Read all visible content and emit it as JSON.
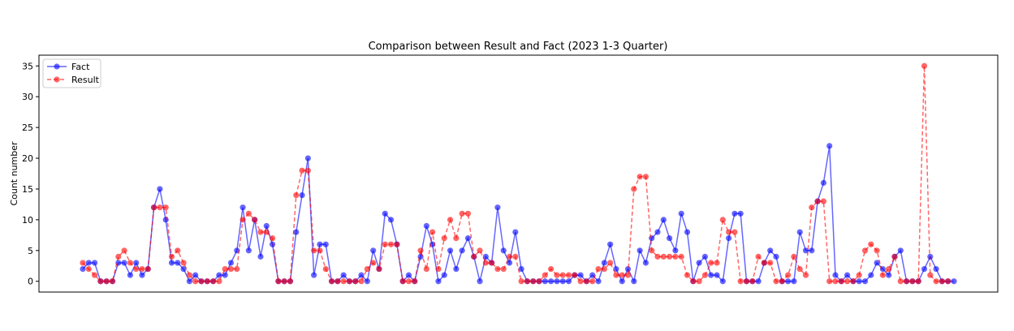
{
  "chart_data": {
    "type": "line",
    "title": "Comparison between Result and Fact (2023 1-3 Quarter)",
    "xlabel": "",
    "ylabel": "Count number",
    "ylim": [
      -1.75,
      36.75
    ],
    "yticks": [
      0,
      5,
      10,
      15,
      20,
      25,
      30,
      35
    ],
    "grid": false,
    "legend_position": "upper-left",
    "series": [
      {
        "name": "Fact",
        "color": "#0000ff",
        "linestyle": "solid",
        "marker": "circle",
        "values": [
          2,
          3,
          3,
          0,
          0,
          0,
          3,
          3,
          1,
          3,
          1,
          2,
          12,
          15,
          10,
          3,
          3,
          2,
          0,
          1,
          0,
          0,
          0,
          1,
          1,
          3,
          5,
          12,
          5,
          10,
          4,
          9,
          6,
          0,
          0,
          0,
          8,
          14,
          20,
          1,
          6,
          6,
          0,
          0,
          1,
          0,
          0,
          1,
          0,
          5,
          2,
          11,
          10,
          6,
          0,
          1,
          0,
          4,
          9,
          6,
          0,
          1,
          5,
          2,
          5,
          7,
          4,
          0,
          4,
          3,
          12,
          5,
          3,
          8,
          2,
          0,
          0,
          0,
          0,
          0,
          0,
          0,
          0,
          1,
          1,
          0,
          1,
          0,
          3,
          6,
          2,
          0,
          2,
          0,
          5,
          3,
          7,
          8,
          10,
          7,
          5,
          11,
          8,
          0,
          3,
          4,
          1,
          1,
          0,
          7,
          11,
          11,
          0,
          0,
          0,
          3,
          5,
          4,
          0,
          0,
          0,
          8,
          5,
          5,
          13,
          16,
          22,
          1,
          0,
          1,
          0,
          0,
          0,
          1,
          3,
          2,
          1,
          4,
          5,
          0,
          0,
          0,
          2,
          4,
          2,
          0,
          0,
          0
        ]
      },
      {
        "name": "Result",
        "color": "#ff0000",
        "linestyle": "dashed",
        "marker": "circle",
        "values": [
          3,
          2,
          1,
          0,
          0,
          0,
          4,
          5,
          3,
          2,
          2,
          2,
          12,
          12,
          12,
          4,
          5,
          3,
          1,
          0,
          0,
          0,
          0,
          0,
          2,
          2,
          2,
          10,
          11,
          10,
          8,
          8,
          7,
          0,
          0,
          0,
          14,
          18,
          18,
          5,
          5,
          2,
          0,
          0,
          0,
          0,
          0,
          0,
          2,
          3,
          2,
          6,
          6,
          6,
          0,
          0,
          0,
          5,
          2,
          8,
          2,
          7,
          10,
          7,
          11,
          11,
          4,
          5,
          3,
          3,
          2,
          2,
          4,
          4,
          0,
          0,
          0,
          0,
          1,
          2,
          1,
          1,
          1,
          1,
          0,
          0,
          0,
          2,
          2,
          3,
          1,
          1,
          1,
          15,
          17,
          17,
          5,
          4,
          4,
          4,
          4,
          4,
          1,
          0,
          0,
          1,
          3,
          3,
          10,
          8,
          8,
          0,
          0,
          0,
          4,
          3,
          3,
          0,
          0,
          1,
          4,
          2,
          1,
          12,
          13,
          13,
          0,
          0,
          0,
          0,
          0,
          1,
          5,
          6,
          5,
          1,
          2,
          4,
          0,
          0,
          0,
          0,
          35,
          1,
          0,
          0,
          0
        ]
      }
    ]
  }
}
